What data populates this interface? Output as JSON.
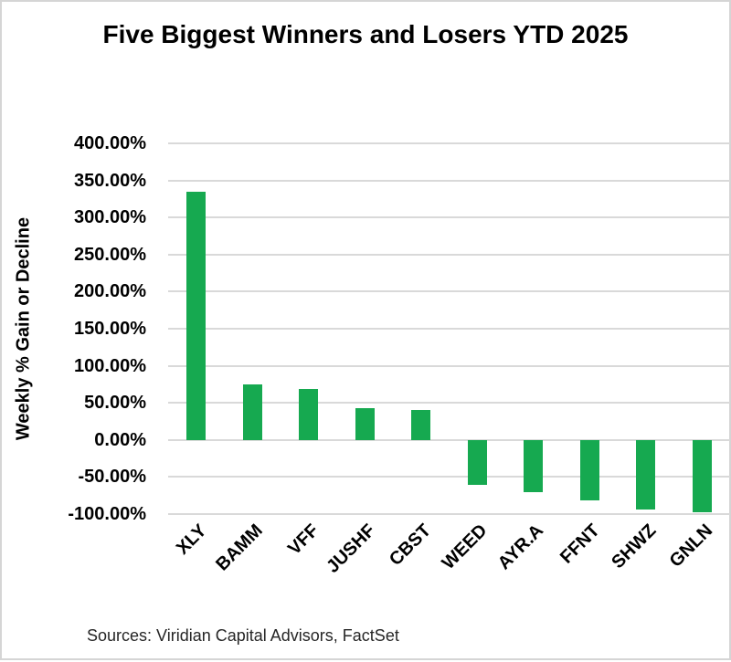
{
  "header": {
    "title": "Five Biggest Winners and Losers YTD 2025"
  },
  "chart_data": {
    "type": "bar",
    "title": "Five Biggest Winners and Losers YTD 2025",
    "xlabel": "",
    "ylabel": "Weekly % Gain or Decline",
    "categories": [
      "XLY",
      "BAMM",
      "VFF",
      "JUSHF",
      "CBST",
      "WEED",
      "AYR.A",
      "FFNT",
      "SHWZ",
      "GNLN"
    ],
    "values": [
      335,
      75,
      69,
      43,
      41,
      -61,
      -71,
      -81,
      -94,
      -98
    ],
    "ylim": [
      -100,
      400
    ],
    "ytick_step": 50,
    "ytick_labels": [
      "400.00%",
      "350.00%",
      "300.00%",
      "250.00%",
      "200.00%",
      "150.00%",
      "100.00%",
      "50.00%",
      "0.00%",
      "-50.00%",
      "-100.00%"
    ],
    "grid": "horizontal",
    "legend": "none",
    "bar_color": "#16a950",
    "gridline_color": "#d9d9d9"
  },
  "footer": {
    "source_text": "Sources: Viridian Capital Advisors, FactSet"
  }
}
